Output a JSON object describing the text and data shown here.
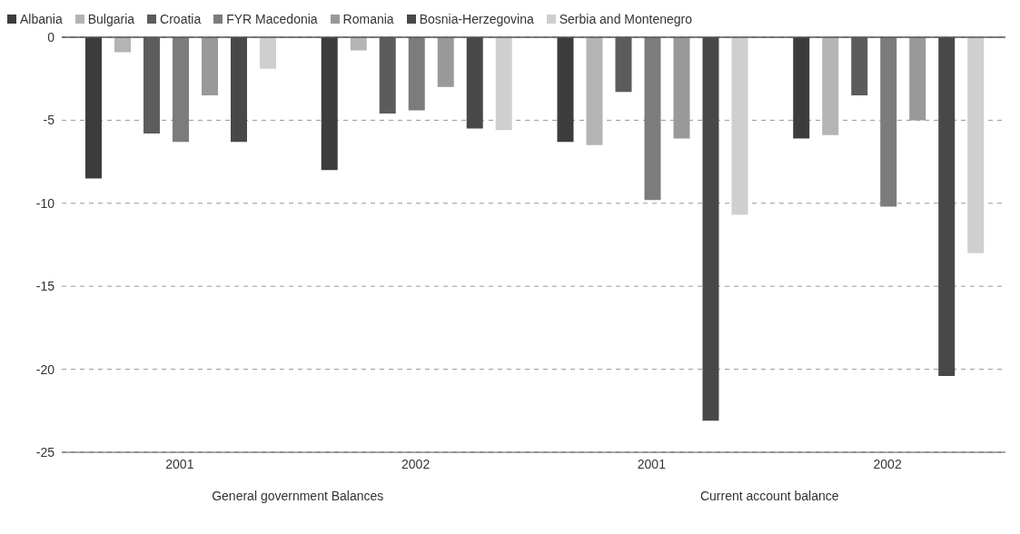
{
  "chart_data": {
    "type": "bar",
    "categories": [
      "2001",
      "2002",
      "2001",
      "2002"
    ],
    "series": [
      {
        "name": "Albania",
        "color": "#3c3c3c",
        "values": [
          -8.5,
          -8.0,
          -6.3,
          -6.1
        ]
      },
      {
        "name": "Bulgaria",
        "color": "#b4b4b4",
        "values": [
          -0.9,
          -0.8,
          -6.5,
          -5.9
        ]
      },
      {
        "name": "Croatia",
        "color": "#5c5c5c",
        "values": [
          -5.8,
          -4.6,
          -3.3,
          -3.5
        ]
      },
      {
        "name": "FYR Macedonia",
        "color": "#7c7c7c",
        "values": [
          -6.3,
          -4.4,
          -9.8,
          -10.2
        ]
      },
      {
        "name": "Romania",
        "color": "#999999",
        "values": [
          -3.5,
          -3.0,
          -6.1,
          -5.0
        ]
      },
      {
        "name": "Bosnia-Herzegovina",
        "color": "#484848",
        "values": [
          -6.3,
          -5.5,
          -23.1,
          -20.4
        ]
      },
      {
        "name": "Serbia and Montenegro",
        "color": "#cfcfcf",
        "values": [
          -1.9,
          -5.6,
          -10.7,
          -13.0
        ]
      }
    ],
    "ylim": [
      -25,
      0
    ],
    "yticks": [
      -25,
      -20,
      -15,
      -10,
      -5,
      0
    ],
    "grid": "y",
    "legend": "top",
    "ref_lines": [
      {
        "axis": "y",
        "value": 0,
        "line_style": "solid"
      }
    ],
    "annotations": [
      "General government Balances",
      "Current account balance"
    ]
  }
}
